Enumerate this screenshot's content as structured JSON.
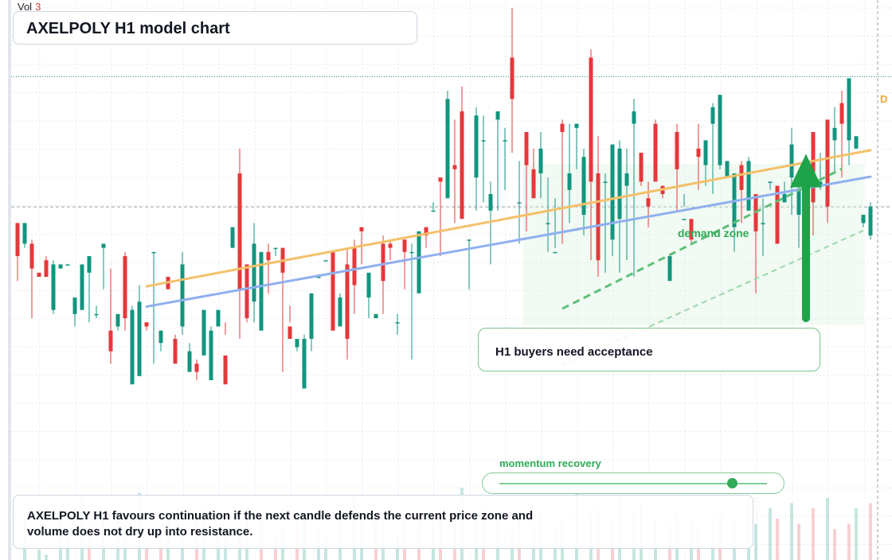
{
  "header": {
    "vol_label": "Vol",
    "vol_value": "3",
    "title": "AXELPOLY H1 model chart"
  },
  "annotations": {
    "callout": "H1 buyers need acceptance",
    "zone_label": "demand zone",
    "momentum_label": "momentum recovery",
    "momentum_value": 0.87,
    "summary": "AXELPOLY H1 favours continuation if the next candle defends the current price zone and volume does not dry up into resistance.",
    "right_flag": "D"
  },
  "colors": {
    "up": "#12957f",
    "down": "#e5383b",
    "fast_ma": "#f4c06a",
    "slow_ma": "#8fb0ef",
    "trend": "#2fab57",
    "arrow": "#1fa34a"
  },
  "chart_data": {
    "type": "candlestick",
    "title": "AXELPOLY H1 model chart",
    "y_axis": {
      "min": 0,
      "max": 100
    },
    "reference_levels": [
      83.4,
      51.9
    ],
    "crosshair_x": 120,
    "candles": [
      [
        48,
        40,
        48,
        34
      ],
      [
        43,
        48,
        48,
        42
      ],
      [
        43,
        37,
        44,
        25
      ],
      [
        36,
        35,
        36,
        35
      ],
      [
        39,
        35,
        40,
        35
      ],
      [
        27,
        38,
        39,
        26
      ],
      [
        37,
        38,
        38,
        37
      ],
      [
        38,
        38,
        38,
        38
      ],
      [
        26,
        30,
        29,
        23
      ],
      [
        27,
        38,
        38,
        27
      ],
      [
        36,
        40,
        40,
        24
      ],
      [
        26,
        26,
        28,
        25
      ],
      [
        42,
        43,
        43,
        32
      ],
      [
        22,
        17,
        37,
        14
      ],
      [
        23,
        26,
        25,
        22
      ],
      [
        40,
        25,
        41,
        22
      ],
      [
        9,
        27,
        28,
        14
      ],
      [
        11,
        29,
        33,
        26
      ],
      [
        24,
        23,
        24,
        22
      ],
      [
        41,
        41,
        41,
        14
      ],
      [
        19,
        22,
        22,
        17
      ],
      [
        35,
        32,
        35,
        32
      ],
      [
        20,
        14,
        21,
        16
      ],
      [
        23,
        38,
        41,
        21
      ],
      [
        12,
        17,
        19,
        16
      ],
      [
        14,
        12,
        15,
        10
      ],
      [
        16,
        27,
        27,
        18
      ],
      [
        10,
        22,
        23,
        12
      ],
      [
        23,
        27,
        27,
        24
      ],
      [
        16,
        9,
        24,
        21
      ],
      [
        42,
        47,
        42,
        44
      ],
      [
        60,
        32,
        66,
        20
      ],
      [
        38,
        25,
        38,
        24
      ],
      [
        29,
        43,
        48,
        24
      ],
      [
        22,
        41,
        40,
        22
      ],
      [
        41,
        39,
        43,
        31
      ],
      [
        42,
        42,
        42,
        40
      ],
      [
        42,
        36,
        40,
        12
      ],
      [
        23,
        20,
        28,
        24
      ],
      [
        18,
        20,
        19,
        17
      ],
      [
        8,
        20,
        21,
        12
      ],
      [
        20,
        31,
        31,
        17
      ],
      [
        35,
        35,
        35,
        35
      ],
      [
        39,
        39,
        39,
        39
      ],
      [
        41,
        22,
        41,
        22
      ],
      [
        23,
        30,
        31,
        24
      ],
      [
        38,
        20,
        42,
        15
      ],
      [
        42,
        33,
        44,
        26
      ],
      [
        47,
        46,
        47,
        38
      ],
      [
        30,
        36,
        32,
        25
      ],
      [
        25,
        26,
        24,
        24
      ],
      [
        43,
        34,
        45,
        26
      ],
      [
        43,
        42,
        44,
        39
      ],
      [
        24,
        24,
        26,
        21
      ],
      [
        44,
        41,
        44,
        32
      ],
      [
        41,
        41,
        43,
        15
      ],
      [
        31,
        46,
        46,
        34
      ],
      [
        47,
        45,
        47,
        42
      ],
      [
        51,
        51,
        53,
        51
      ],
      [
        59,
        58,
        59,
        40
      ],
      [
        54,
        78,
        80,
        54
      ],
      [
        62,
        61,
        73,
        48
      ],
      [
        75,
        49,
        81,
        61
      ],
      [
        44,
        44,
        44,
        32
      ],
      [
        59,
        74,
        76,
        51
      ],
      [
        68,
        68,
        74,
        53
      ],
      [
        51,
        55,
        58,
        38
      ],
      [
        73,
        75,
        74,
        51
      ],
      [
        68,
        68,
        71,
        56
      ],
      [
        88,
        78,
        100,
        65
      ],
      [
        53,
        53,
        63,
        43
      ],
      [
        70,
        62,
        70,
        46
      ],
      [
        61,
        54,
        66,
        57
      ],
      [
        60,
        66,
        70,
        54
      ],
      [
        48,
        48,
        59,
        41
      ],
      [
        41,
        41,
        54,
        42
      ],
      [
        72,
        70,
        73,
        43
      ],
      [
        56,
        60,
        72,
        48
      ],
      [
        71,
        72,
        72,
        61
      ],
      [
        50,
        64,
        66,
        45
      ],
      [
        88,
        58,
        90,
        39
      ],
      [
        60,
        39,
        69,
        35
      ],
      [
        58,
        58,
        60,
        36
      ],
      [
        44,
        67,
        67,
        40
      ],
      [
        49,
        66,
        68,
        36
      ],
      [
        57,
        60,
        66,
        39
      ],
      [
        72,
        75,
        78,
        35
      ],
      [
        65,
        58,
        58,
        57
      ],
      [
        54,
        52,
        58,
        47
      ],
      [
        72,
        58,
        73,
        66
      ],
      [
        57,
        55,
        57,
        54
      ],
      [
        34,
        40,
        39,
        35
      ],
      [
        70,
        61,
        72,
        51
      ],
      [
        49,
        49,
        55,
        52
      ],
      [
        49,
        44,
        44,
        43
      ],
      [
        66,
        64,
        72,
        56
      ],
      [
        62,
        68,
        68,
        57
      ],
      [
        72,
        76,
        77,
        55
      ],
      [
        62,
        79,
        79,
        61
      ],
      [
        59,
        63,
        63,
        59
      ],
      [
        47,
        60,
        60,
        41
      ],
      [
        62,
        56,
        63,
        48
      ],
      [
        51,
        63,
        64,
        60
      ],
      [
        55,
        46,
        55,
        31
      ],
      [
        48,
        48,
        54,
        40
      ],
      [
        58,
        58,
        58,
        56
      ],
      [
        57,
        43,
        56,
        44
      ],
      [
        53,
        55,
        58,
        53
      ],
      [
        59,
        67,
        71,
        50
      ],
      [
        50,
        56,
        59,
        42
      ],
      [
        48,
        56,
        59,
        44
      ],
      [
        70,
        53,
        70,
        45
      ],
      [
        57,
        58,
        65,
        56
      ],
      [
        73,
        52,
        73,
        48
      ],
      [
        68,
        71,
        76,
        60
      ],
      [
        77,
        72,
        80,
        59
      ],
      [
        68,
        83,
        82,
        62
      ],
      [
        66,
        69,
        68,
        67
      ],
      [
        48,
        50,
        48,
        47
      ],
      [
        45,
        52,
        53,
        44
      ]
    ],
    "volume": [
      [
        5,
        "up"
      ],
      [
        8,
        "up"
      ],
      [
        4,
        "down"
      ],
      [
        2,
        "up"
      ],
      [
        1,
        "up"
      ],
      [
        9,
        "down"
      ],
      [
        10,
        "up"
      ],
      [
        6,
        "up"
      ],
      [
        8,
        "down"
      ],
      [
        12,
        "up"
      ],
      [
        7,
        "down"
      ],
      [
        5,
        "up"
      ],
      [
        9,
        "up"
      ],
      [
        11,
        "down"
      ],
      [
        8,
        "up"
      ],
      [
        6,
        "up"
      ],
      [
        10,
        "up"
      ],
      [
        13,
        "up"
      ],
      [
        4,
        "down"
      ],
      [
        9,
        "up"
      ],
      [
        6,
        "down"
      ],
      [
        8,
        "up"
      ],
      [
        7,
        "down"
      ],
      [
        5,
        "up"
      ],
      [
        14,
        "down"
      ],
      [
        9,
        "down"
      ],
      [
        10,
        "up"
      ],
      [
        12,
        "up"
      ],
      [
        6,
        "up"
      ],
      [
        4,
        "up"
      ],
      [
        8,
        "down"
      ],
      [
        7,
        "up"
      ],
      [
        10,
        "up"
      ],
      [
        11,
        "up"
      ],
      [
        9,
        "down"
      ],
      [
        8,
        "up"
      ],
      [
        5,
        "down"
      ],
      [
        6,
        "up"
      ],
      [
        13,
        "up"
      ],
      [
        7,
        "down"
      ],
      [
        9,
        "up"
      ],
      [
        11,
        "down"
      ],
      [
        6,
        "up"
      ],
      [
        5,
        "up"
      ],
      [
        10,
        "up"
      ],
      [
        8,
        "up"
      ],
      [
        7,
        "down"
      ],
      [
        12,
        "up"
      ],
      [
        9,
        "up"
      ],
      [
        6,
        "down"
      ],
      [
        8,
        "down"
      ],
      [
        10,
        "up"
      ],
      [
        7,
        "up"
      ],
      [
        5,
        "up"
      ],
      [
        9,
        "down"
      ],
      [
        11,
        "up"
      ],
      [
        8,
        "down"
      ],
      [
        6,
        "up"
      ],
      [
        7,
        "up"
      ],
      [
        10,
        "down"
      ],
      [
        12,
        "up"
      ],
      [
        9,
        "down"
      ],
      [
        14,
        "up"
      ],
      [
        6,
        "up"
      ],
      [
        8,
        "up"
      ],
      [
        10,
        "down"
      ],
      [
        7,
        "up"
      ],
      [
        9,
        "up"
      ],
      [
        11,
        "down"
      ],
      [
        6,
        "up"
      ],
      [
        8,
        "down"
      ],
      [
        10,
        "up"
      ],
      [
        7,
        "up"
      ],
      [
        9,
        "up"
      ],
      [
        12,
        "down"
      ],
      [
        6,
        "up"
      ],
      [
        8,
        "up"
      ],
      [
        11,
        "down"
      ],
      [
        13,
        "up"
      ],
      [
        7,
        "down"
      ],
      [
        9,
        "up"
      ],
      [
        10,
        "down"
      ],
      [
        6,
        "up"
      ],
      [
        8,
        "down"
      ],
      [
        12,
        "up"
      ],
      [
        7,
        "down"
      ],
      [
        9,
        "up"
      ],
      [
        11,
        "up"
      ],
      [
        6,
        "down"
      ],
      [
        8,
        "up"
      ],
      [
        10,
        "up"
      ],
      [
        7,
        "down"
      ],
      [
        9,
        "up"
      ],
      [
        12,
        "down"
      ],
      [
        8,
        "up"
      ],
      [
        6,
        "down"
      ],
      [
        10,
        "up"
      ],
      [
        7,
        "up"
      ],
      [
        9,
        "down"
      ],
      [
        11,
        "up"
      ],
      [
        8,
        "up"
      ],
      [
        6,
        "down"
      ],
      [
        12,
        "up"
      ],
      [
        7,
        "up"
      ],
      [
        9,
        "down"
      ],
      [
        10,
        "up"
      ],
      [
        8,
        "down"
      ],
      [
        6,
        "up"
      ],
      [
        11,
        "up"
      ],
      [
        7,
        "down"
      ],
      [
        9,
        "up"
      ],
      [
        10,
        "down"
      ],
      [
        8,
        "up"
      ],
      [
        12,
        "up"
      ],
      [
        6,
        "down"
      ],
      [
        9,
        "up"
      ],
      [
        7,
        "down"
      ],
      [
        10,
        "up"
      ],
      [
        8,
        "up"
      ],
      [
        11,
        "down"
      ]
    ],
    "fast_ma": {
      "start_index": 18,
      "start": 32.7,
      "end_index": 119,
      "end": 65.6
    },
    "slow_ma": {
      "start_index": 18,
      "start": 27.8,
      "end_index": 119,
      "end": 59.2
    },
    "trend_dashed": {
      "start_index": 76,
      "start": 27.3,
      "end_index": 115,
      "end": 61.1
    },
    "trend_dashed_thin": {
      "start_index": 76,
      "start": 13.5,
      "end_index": 118,
      "end": 46.2
    },
    "zone": {
      "from_index": 75,
      "to_index": 118,
      "from": 23.4,
      "to": 62.3
    },
    "arrow": {
      "at_index": 110,
      "from": 25.0,
      "to": 64.7
    }
  }
}
